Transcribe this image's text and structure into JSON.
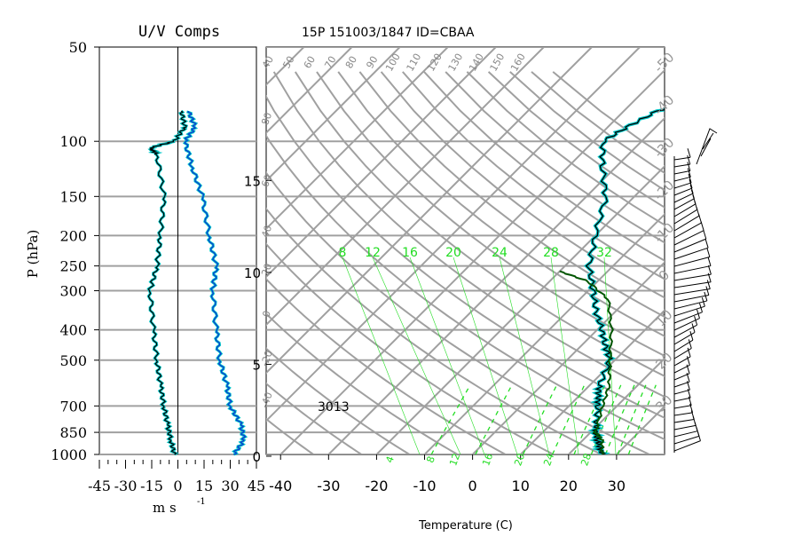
{
  "header": {
    "title": "15P 151003/1847 ID=CBAA",
    "left_title": "U/V Comps"
  },
  "left_panel": {
    "ylabel": "P (hPa)",
    "xlabel": "m  s",
    "xlabel_exp": "-1",
    "station_label": "3013"
  },
  "skewt": {
    "xlabel": "Temperature (C)"
  },
  "colors": {
    "frame": "#000000",
    "grid": "#a0a0a0",
    "sounding": "#000000",
    "dewpoint_trace": "#00c8c8",
    "wind_u": "#000000",
    "wind_v": "#1030d0",
    "green": "#22dd22",
    "parcel": "#005500"
  },
  "chart_data": {
    "type": "line",
    "pressure_levels": [
      50,
      100,
      150,
      200,
      250,
      300,
      400,
      500,
      700,
      850,
      1000
    ],
    "pressure_labels": [
      "50",
      "100",
      "150",
      "200",
      "250",
      "300",
      "400",
      "500",
      "700",
      "850",
      "1000"
    ],
    "uv_xticks": [
      "-45",
      "-30",
      "-15",
      "0",
      "15",
      "30",
      "45"
    ],
    "uv_xlim": [
      -45,
      45
    ],
    "temperature_ticks": [
      "-40",
      "-30",
      "-20",
      "-10",
      "0",
      "10",
      "20",
      "30"
    ],
    "temperature_xlim": [
      -43,
      40
    ],
    "height_ticks": [
      "0",
      "5",
      "10",
      "15"
    ],
    "height_values_km": [
      0,
      5,
      10,
      15
    ],
    "theta_labels": [
      "40",
      "50",
      "60",
      "70",
      "80",
      "90",
      "100",
      "110",
      "120",
      "130",
      "140",
      "150",
      "160"
    ],
    "theta_e_side_labels": [
      "80",
      "60",
      "40",
      "20",
      "0",
      "-20",
      "-40",
      "-30"
    ],
    "mixing_ratio_labels": [
      "8",
      "12",
      "16",
      "20",
      "24",
      "28",
      "32"
    ],
    "mixing_ratio_bottom": [
      "4",
      "8",
      "12",
      "16",
      "20",
      "24",
      "28"
    ],
    "right_labels": [
      "-50",
      "-40",
      "-30",
      "-20",
      "-10",
      "0",
      "10",
      "20",
      "30"
    ],
    "series": [
      {
        "name": "",
        "kind": "temperature",
        "points": [
          [
            27,
            1000
          ],
          [
            25,
            950
          ],
          [
            23,
            900
          ],
          [
            21,
            850
          ],
          [
            19.5,
            800
          ],
          [
            16,
            700
          ],
          [
            14,
            650
          ],
          [
            12,
            600
          ],
          [
            9,
            500
          ],
          [
            5,
            450
          ],
          [
            1,
            400
          ],
          [
            -4,
            350
          ],
          [
            -9,
            300
          ],
          [
            -15,
            250
          ],
          [
            -20,
            200
          ],
          [
            -26,
            150
          ],
          [
            -33,
            120
          ],
          [
            -38,
            100
          ],
          [
            -36,
            90
          ],
          [
            -33,
            80
          ],
          [
            -28,
            75
          ]
        ]
      },
      {
        "name": "",
        "kind": "parcel",
        "points": [
          [
            27,
            1000
          ],
          [
            24,
            900
          ],
          [
            21,
            850
          ],
          [
            17,
            700
          ],
          [
            14,
            600
          ],
          [
            9,
            500
          ],
          [
            3,
            400
          ],
          [
            -4,
            320
          ],
          [
            -12,
            280
          ],
          [
            -20,
            260
          ]
        ]
      },
      {
        "name": "",
        "kind": "u_component",
        "points": [
          [
            -2,
            1000
          ],
          [
            -4,
            900
          ],
          [
            -6,
            800
          ],
          [
            -8,
            700
          ],
          [
            -10,
            600
          ],
          [
            -12,
            500
          ],
          [
            -14,
            400
          ],
          [
            -16,
            300
          ],
          [
            -12,
            250
          ],
          [
            -10,
            200
          ],
          [
            -8,
            150
          ],
          [
            -12,
            110
          ],
          [
            -16,
            105
          ],
          [
            -2,
            100
          ],
          [
            4,
            90
          ],
          [
            2,
            80
          ]
        ]
      },
      {
        "name": "",
        "kind": "v_component",
        "points": [
          [
            32,
            1000
          ],
          [
            38,
            900
          ],
          [
            36,
            800
          ],
          [
            30,
            700
          ],
          [
            28,
            600
          ],
          [
            24,
            500
          ],
          [
            22,
            400
          ],
          [
            20,
            300
          ],
          [
            22,
            250
          ],
          [
            18,
            200
          ],
          [
            14,
            150
          ],
          [
            8,
            120
          ],
          [
            4,
            100
          ],
          [
            10,
            90
          ],
          [
            6,
            80
          ]
        ]
      }
    ]
  }
}
